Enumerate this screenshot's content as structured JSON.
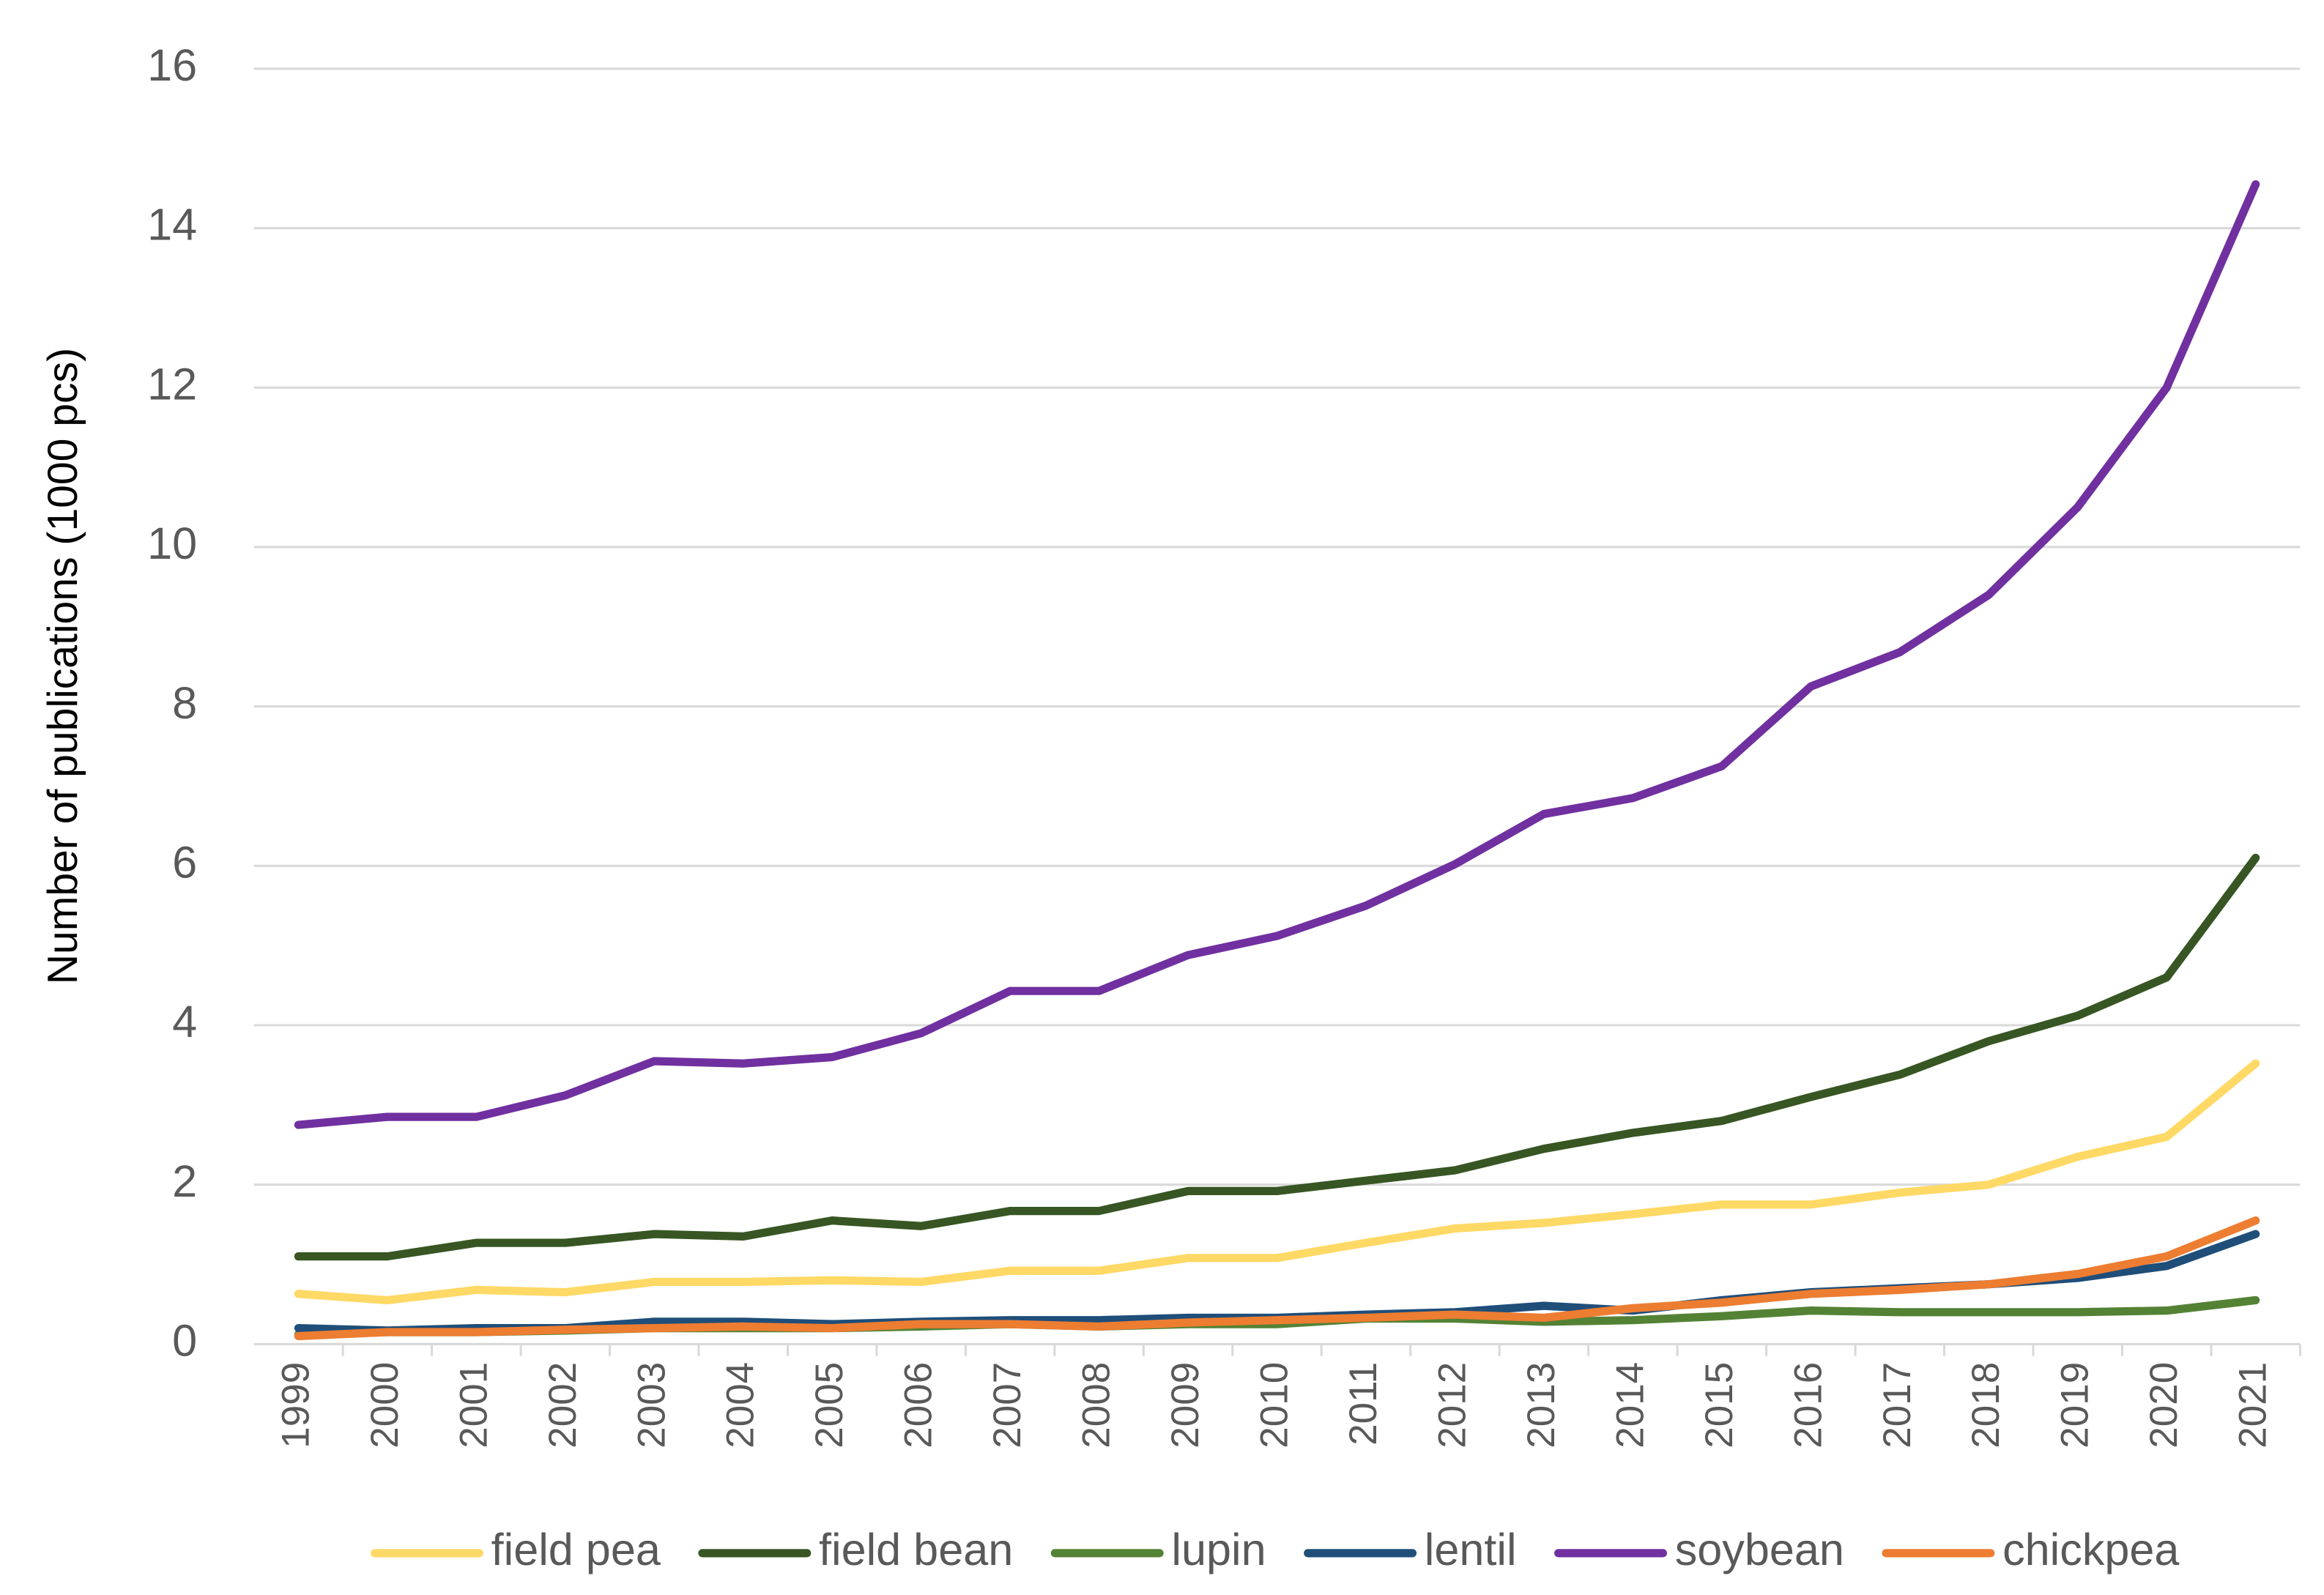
{
  "chart_data": {
    "type": "line",
    "y_label": "Number of publications (1000 pcs)",
    "categories": [
      "1999",
      "2000",
      "2001",
      "2002",
      "2003",
      "2004",
      "2005",
      "2006",
      "2007",
      "2008",
      "2009",
      "2010",
      "2011",
      "2012",
      "2013",
      "2014",
      "2015",
      "2016",
      "2017",
      "2018",
      "2019",
      "2020",
      "2021"
    ],
    "ylim": [
      0,
      16
    ],
    "yticks": [
      0,
      2,
      4,
      6,
      8,
      10,
      12,
      14,
      16
    ],
    "grid": true,
    "legend": "bottom",
    "series": [
      {
        "name": "field pea",
        "color": "#ffd966",
        "values": [
          0.63,
          0.55,
          0.68,
          0.65,
          0.78,
          0.78,
          0.8,
          0.78,
          0.92,
          0.92,
          1.08,
          1.08,
          1.27,
          1.45,
          1.52,
          1.63,
          1.75,
          1.75,
          1.9,
          2.0,
          2.35,
          2.6,
          3.52
        ]
      },
      {
        "name": "field bean",
        "color": "#375623",
        "values": [
          1.1,
          1.1,
          1.27,
          1.27,
          1.38,
          1.35,
          1.55,
          1.48,
          1.67,
          1.67,
          1.92,
          1.92,
          2.05,
          2.18,
          2.45,
          2.65,
          2.8,
          3.1,
          3.38,
          3.8,
          4.12,
          4.6,
          6.1
        ]
      },
      {
        "name": "lupin",
        "color": "#548235",
        "values": [
          0.12,
          0.15,
          0.15,
          0.17,
          0.2,
          0.2,
          0.2,
          0.22,
          0.25,
          0.22,
          0.25,
          0.25,
          0.32,
          0.32,
          0.28,
          0.3,
          0.35,
          0.42,
          0.4,
          0.4,
          0.4,
          0.42,
          0.55
        ]
      },
      {
        "name": "lentil",
        "color": "#1f4e79",
        "values": [
          0.2,
          0.17,
          0.2,
          0.2,
          0.28,
          0.28,
          0.25,
          0.28,
          0.3,
          0.3,
          0.33,
          0.33,
          0.37,
          0.4,
          0.48,
          0.42,
          0.55,
          0.65,
          0.7,
          0.75,
          0.83,
          0.98,
          1.38
        ]
      },
      {
        "name": "soybean",
        "color": "#7030a0",
        "values": [
          2.75,
          2.85,
          2.85,
          3.12,
          3.55,
          3.52,
          3.6,
          3.9,
          4.43,
          4.43,
          4.88,
          5.12,
          5.5,
          6.02,
          6.65,
          6.85,
          7.25,
          8.25,
          8.68,
          9.4,
          10.5,
          12.0,
          14.55
        ]
      },
      {
        "name": "chickpea",
        "color": "#ed7d31",
        "values": [
          0.1,
          0.15,
          0.15,
          0.18,
          0.2,
          0.22,
          0.2,
          0.25,
          0.25,
          0.22,
          0.27,
          0.3,
          0.33,
          0.37,
          0.33,
          0.45,
          0.52,
          0.63,
          0.68,
          0.75,
          0.88,
          1.1,
          1.55
        ]
      }
    ]
  }
}
